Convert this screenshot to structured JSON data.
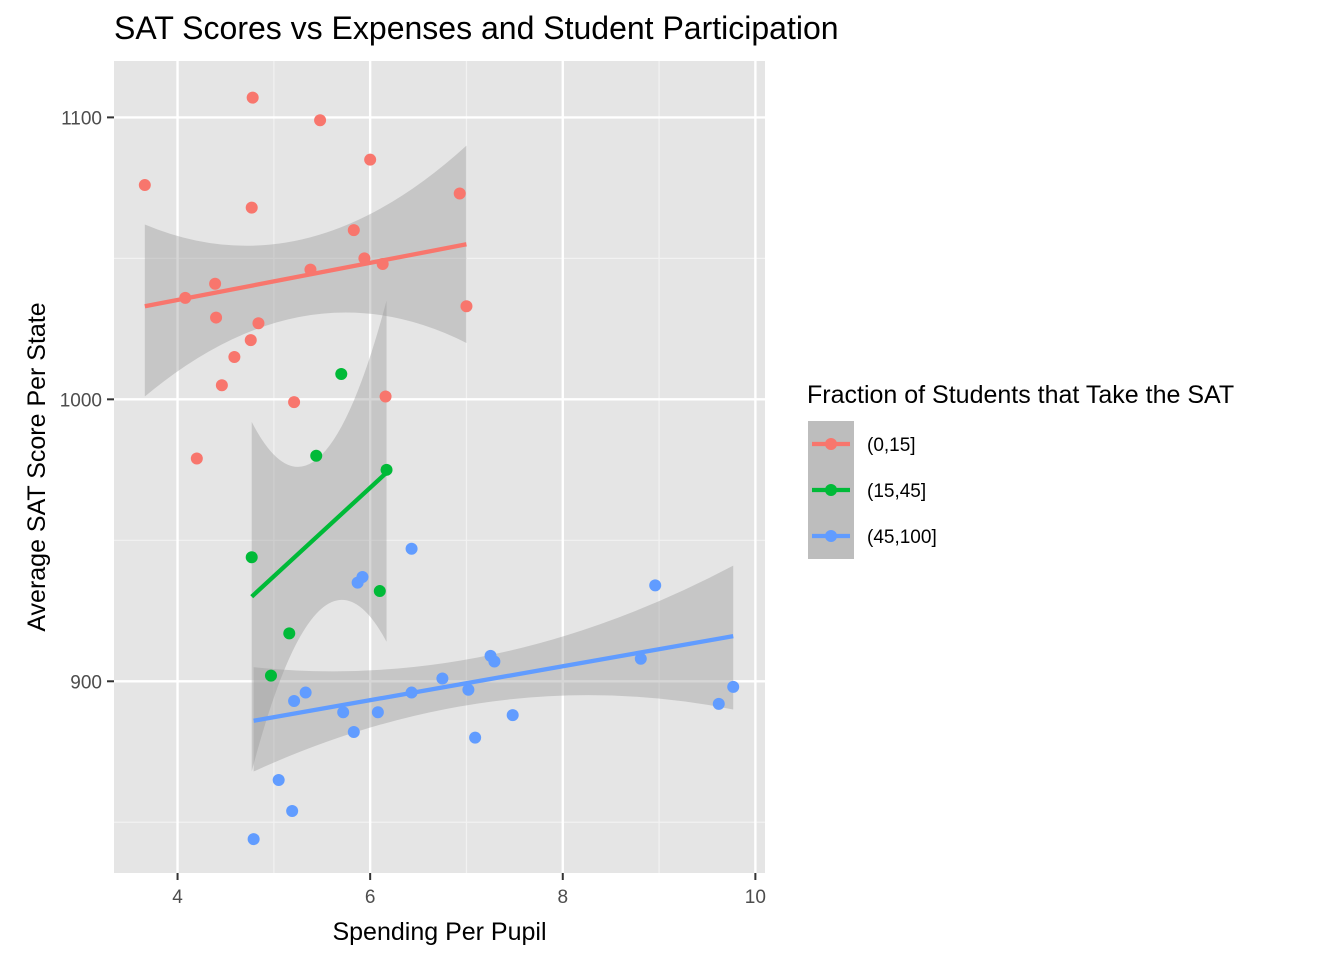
{
  "chart_data": {
    "type": "scatter",
    "title": "SAT Scores vs Expenses and Student Participation",
    "xlabel": "Spending Per Pupil",
    "ylabel": "Average SAT Score Per State",
    "xlim": [
      3.34,
      10.1
    ],
    "ylim": [
      832,
      1120
    ],
    "x_ticks": [
      4,
      6,
      8,
      10
    ],
    "y_ticks": [
      900,
      1000,
      1100
    ],
    "x_minor_ticks": [
      5,
      7,
      9
    ],
    "y_minor_ticks": [
      850,
      950,
      1050
    ],
    "grid": true,
    "background": "#e5e5e5",
    "legend": {
      "title": "Fraction of Students that Take the SAT",
      "position": "right"
    },
    "series": [
      {
        "name": "(0,15]",
        "color": "#f8766d",
        "points": [
          {
            "x": 3.66,
            "y": 1076
          },
          {
            "x": 4.78,
            "y": 1107
          },
          {
            "x": 5.48,
            "y": 1099
          },
          {
            "x": 6.0,
            "y": 1085
          },
          {
            "x": 4.77,
            "y": 1068
          },
          {
            "x": 6.93,
            "y": 1073
          },
          {
            "x": 5.83,
            "y": 1060
          },
          {
            "x": 5.94,
            "y": 1050
          },
          {
            "x": 6.13,
            "y": 1048
          },
          {
            "x": 5.38,
            "y": 1046
          },
          {
            "x": 4.39,
            "y": 1041
          },
          {
            "x": 4.08,
            "y": 1036
          },
          {
            "x": 7.0,
            "y": 1033
          },
          {
            "x": 4.4,
            "y": 1029
          },
          {
            "x": 4.84,
            "y": 1027
          },
          {
            "x": 4.76,
            "y": 1021
          },
          {
            "x": 4.59,
            "y": 1015
          },
          {
            "x": 4.46,
            "y": 1005
          },
          {
            "x": 6.16,
            "y": 1001
          },
          {
            "x": 5.21,
            "y": 999
          },
          {
            "x": 4.2,
            "y": 979
          }
        ],
        "fit": {
          "x_range": [
            3.66,
            7.0
          ],
          "y_start": 1033,
          "y_end": 1055,
          "ci_lower": [
            1001,
            1020
          ],
          "ci_upper": [
            1062,
            1090
          ]
        }
      },
      {
        "name": "(15,45]",
        "color": "#00ba38",
        "points": [
          {
            "x": 5.7,
            "y": 1009
          },
          {
            "x": 5.44,
            "y": 980
          },
          {
            "x": 6.17,
            "y": 975
          },
          {
            "x": 4.77,
            "y": 944
          },
          {
            "x": 6.1,
            "y": 932
          },
          {
            "x": 5.16,
            "y": 917
          },
          {
            "x": 4.97,
            "y": 902
          }
        ],
        "fit": {
          "x_range": [
            4.77,
            6.17
          ],
          "y_start": 930,
          "y_end": 974,
          "ci_lower": [
            868,
            914
          ],
          "ci_upper": [
            992,
            1035
          ]
        }
      },
      {
        "name": "(45,100]",
        "color": "#619cff",
        "points": [
          {
            "x": 6.43,
            "y": 947
          },
          {
            "x": 5.92,
            "y": 937
          },
          {
            "x": 5.87,
            "y": 935
          },
          {
            "x": 8.96,
            "y": 934
          },
          {
            "x": 7.25,
            "y": 909
          },
          {
            "x": 7.29,
            "y": 907
          },
          {
            "x": 8.81,
            "y": 908
          },
          {
            "x": 6.75,
            "y": 901
          },
          {
            "x": 9.77,
            "y": 898
          },
          {
            "x": 7.02,
            "y": 897
          },
          {
            "x": 6.43,
            "y": 896
          },
          {
            "x": 5.33,
            "y": 896
          },
          {
            "x": 5.21,
            "y": 893
          },
          {
            "x": 9.62,
            "y": 892
          },
          {
            "x": 5.72,
            "y": 889
          },
          {
            "x": 6.08,
            "y": 889
          },
          {
            "x": 7.48,
            "y": 888
          },
          {
            "x": 5.83,
            "y": 882
          },
          {
            "x": 7.09,
            "y": 880
          },
          {
            "x": 5.05,
            "y": 865
          },
          {
            "x": 5.19,
            "y": 854
          },
          {
            "x": 4.79,
            "y": 844
          }
        ],
        "fit": {
          "x_range": [
            4.79,
            9.77
          ],
          "y_start": 886,
          "y_end": 916,
          "ci_lower": [
            868,
            890
          ],
          "ci_upper": [
            905,
            941
          ]
        }
      }
    ]
  }
}
